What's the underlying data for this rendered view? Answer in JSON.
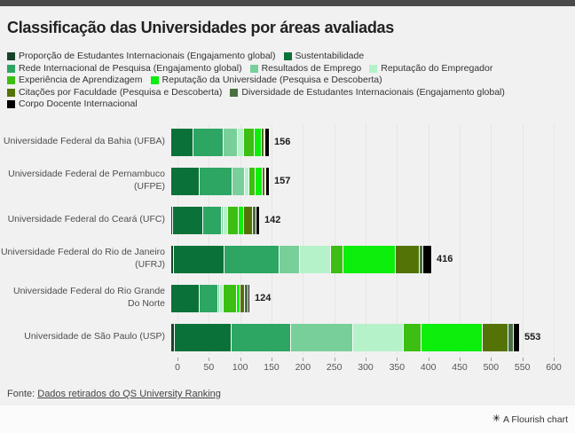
{
  "page": {
    "topbar_color": "#4a4a4a",
    "card_bg": "#f1f1f1",
    "attribution_bg": "#fbfbfb"
  },
  "header": {
    "title": "Classificação das Universidades por áreas avaliadas"
  },
  "footer": {
    "source_prefix": "Fonte: ",
    "source_link_text": "Dados retirados do QS University Ranking"
  },
  "attribution": {
    "logo_glyph": "✳",
    "label": "A Flourish chart"
  },
  "chart_data": {
    "type": "bar",
    "stacked": true,
    "orientation": "horizontal",
    "title": "Classificação das Universidades por áreas avaliadas",
    "xlabel": "",
    "ylabel": "",
    "xlim": [
      0,
      600
    ],
    "x_ticks": [
      0,
      50,
      100,
      150,
      200,
      250,
      300,
      350,
      400,
      450,
      500,
      550,
      600
    ],
    "grid": true,
    "legend_position": "top",
    "categories": [
      "Universidade Federal da Bahia (UFBA)",
      "Universidade Federal de Pernambuco (UFPE)",
      "Universidade Federal do Ceará (UFC)",
      "Universidade Federal do Rio de Janeiro (UFRJ)",
      "Universidade Federal do Rio Grande Do Norte",
      "Universidade de São Paulo (USP)"
    ],
    "totals": [
      156,
      157,
      142,
      416,
      124,
      553
    ],
    "series": [
      {
        "name": "Proporção de Estudantes Internacionais (Engajamento global)",
        "color": "#16432a",
        "values": [
          0,
          0,
          3,
          4,
          0,
          5
        ]
      },
      {
        "name": "Sustentabilidade",
        "color": "#0a7238",
        "values": [
          35,
          45,
          48,
          80,
          45,
          90
        ]
      },
      {
        "name": "Rede Internacional de Pesquisa (Engajamento global)",
        "color": "#2da563",
        "values": [
          48,
          52,
          30,
          88,
          30,
          95
        ]
      },
      {
        "name": "Resultados de Emprego",
        "color": "#79cf99",
        "values": [
          22,
          20,
          3,
          33,
          3,
          99
        ]
      },
      {
        "name": "Reputação do Empregador",
        "color": "#b5f2c9",
        "values": [
          10,
          7,
          7,
          49,
          5,
          80
        ]
      },
      {
        "name": "Experiência de Aprendizagem",
        "color": "#3cbe12",
        "values": [
          17,
          10,
          17,
          20,
          21,
          28
        ]
      },
      {
        "name": "Reputação da Universidade (Pesquisa e Descoberta)",
        "color": "#0cee0c",
        "values": [
          11,
          11,
          9,
          84,
          5,
          97
        ]
      },
      {
        "name": "Citações por Faculdade (Pesquisa e Descoberta)",
        "color": "#537307",
        "values": [
          4,
          4,
          14,
          38,
          7,
          41
        ]
      },
      {
        "name": "Diversidade de Estudantes Internacionais (Engajamento global)",
        "color": "#497040",
        "values": [
          2,
          2,
          5,
          6,
          5,
          8
        ]
      },
      {
        "name": "Corpo Docente Internacional",
        "color": "#000000",
        "values": [
          7,
          6,
          6,
          14,
          3,
          10
        ]
      }
    ],
    "legend_rows": [
      [
        0,
        1
      ],
      [
        2,
        3,
        4
      ],
      [
        5,
        6
      ],
      [
        7,
        8
      ],
      [
        9
      ]
    ]
  }
}
